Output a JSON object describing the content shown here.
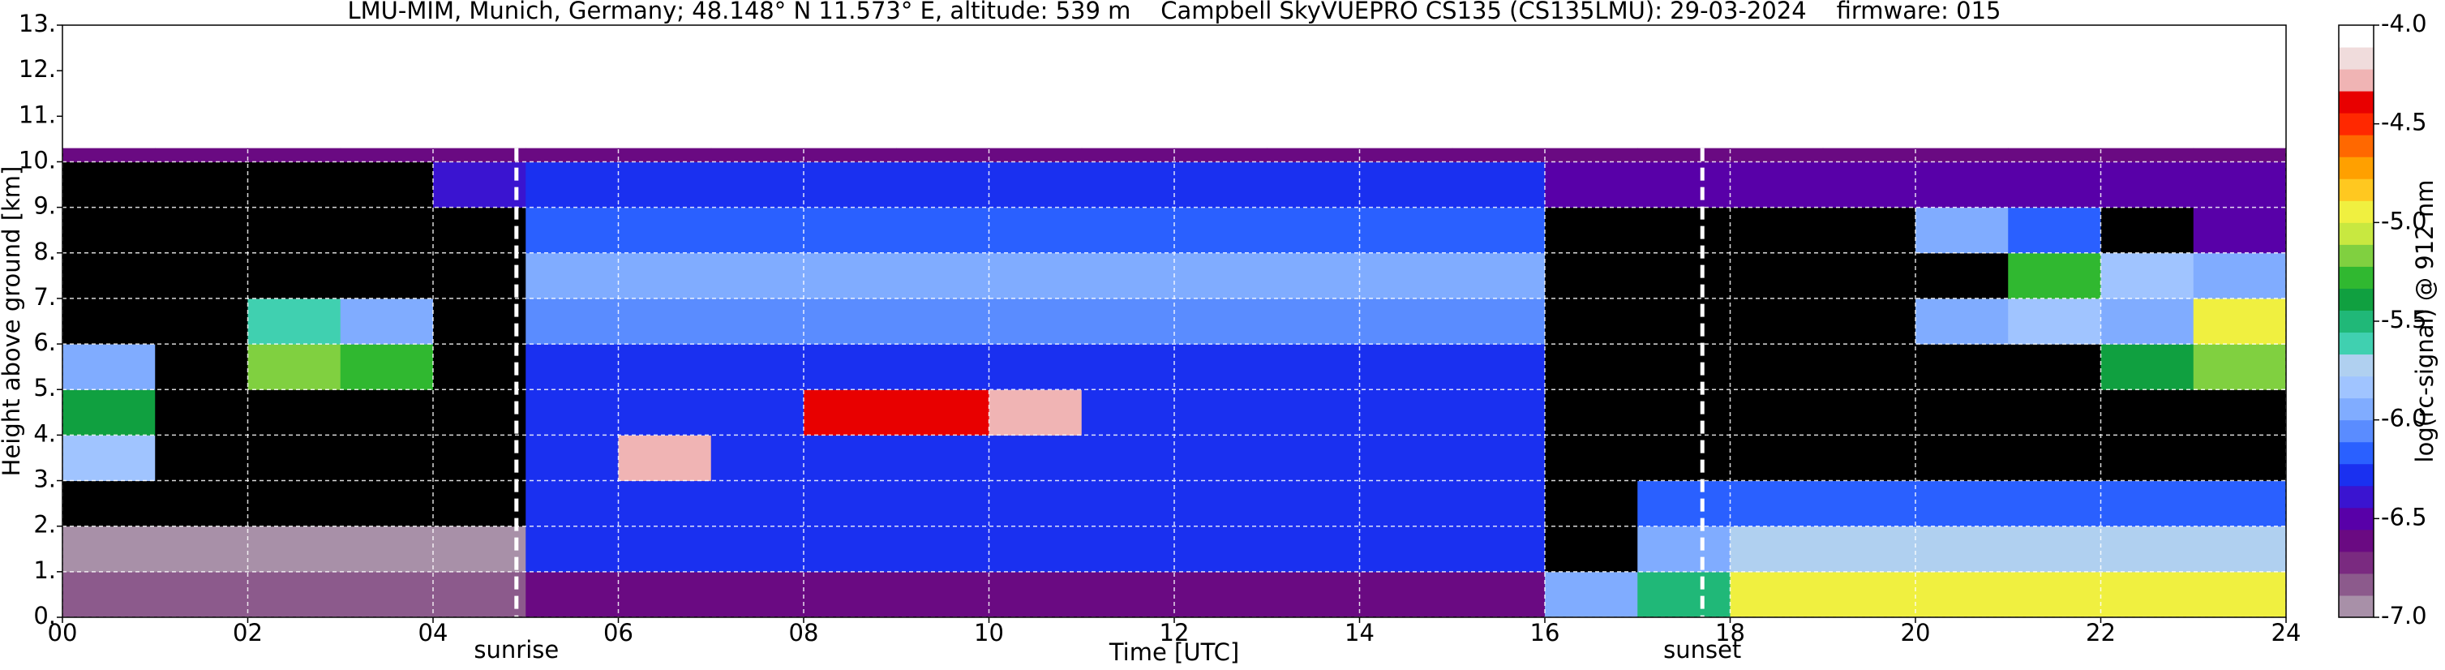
{
  "chart_data": {
    "type": "heatmap",
    "title": "LMU-MIM, Munich, Germany; 48.148° N 11.573° E, altitude: 539 m    Campbell SkyVUEPRO CS135 (CS135LMU): 29-03-2024    firmware: 015",
    "xlabel": "Time [UTC]",
    "ylabel": "Height above ground [km]",
    "colorbar_label": "log(rc-signal) @ 912 nm",
    "xlim": [
      0,
      24
    ],
    "ylim": [
      0,
      13
    ],
    "xticks": [
      {
        "value": 0,
        "label": "00"
      },
      {
        "value": 2,
        "label": "02"
      },
      {
        "value": 4,
        "label": "04"
      },
      {
        "value": 6,
        "label": "06"
      },
      {
        "value": 8,
        "label": "08"
      },
      {
        "value": 10,
        "label": "10"
      },
      {
        "value": 12,
        "label": "12"
      },
      {
        "value": 14,
        "label": "14"
      },
      {
        "value": 16,
        "label": "16"
      },
      {
        "value": 18,
        "label": "18"
      },
      {
        "value": 20,
        "label": "20"
      },
      {
        "value": 22,
        "label": "22"
      },
      {
        "value": 24,
        "label": "24"
      }
    ],
    "yticks": [
      {
        "value": 0,
        "label": "0."
      },
      {
        "value": 1,
        "label": "1."
      },
      {
        "value": 2,
        "label": "2."
      },
      {
        "value": 3,
        "label": "3."
      },
      {
        "value": 4,
        "label": "4."
      },
      {
        "value": 5,
        "label": "5."
      },
      {
        "value": 6,
        "label": "6."
      },
      {
        "value": 7,
        "label": "7."
      },
      {
        "value": 8,
        "label": "8."
      },
      {
        "value": 9,
        "label": "9."
      },
      {
        "value": 10,
        "label": "10."
      },
      {
        "value": 11,
        "label": "11."
      },
      {
        "value": 12,
        "label": "12."
      },
      {
        "value": 13,
        "label": "13."
      }
    ],
    "grid": true,
    "xbins": [
      0,
      1,
      2,
      3,
      4,
      5,
      6,
      7,
      8,
      9,
      10,
      11,
      12,
      13,
      14,
      15,
      16,
      17,
      18,
      19,
      20,
      21,
      22,
      23,
      24
    ],
    "ybins": [
      0,
      1,
      2,
      3,
      4,
      5,
      6,
      7,
      8,
      9,
      10,
      10.3
    ],
    "z": [
      [
        -6.8,
        -6.8,
        -6.8,
        -6.8,
        -6.8,
        -6.6,
        -6.6,
        -6.6,
        -6.6,
        -6.6,
        -6.6,
        -6.6,
        -6.6,
        -6.6,
        -6.6,
        -6.6,
        -6.0,
        -5.5,
        -5.0,
        -5.0,
        -5.0,
        -5.0,
        -5.0,
        -5.0
      ],
      [
        -6.9,
        -6.9,
        -6.9,
        -6.9,
        -6.9,
        -6.3,
        -6.3,
        -6.3,
        -6.3,
        -6.3,
        -6.3,
        -6.3,
        -6.3,
        -6.3,
        -6.3,
        -6.3,
        -7.5,
        -5.9,
        -5.7,
        -5.7,
        -5.7,
        -5.7,
        -5.7,
        -5.7
      ],
      [
        -7.5,
        -7.5,
        -7.5,
        -7.5,
        -7.5,
        -6.3,
        -6.3,
        -6.3,
        -6.3,
        -6.3,
        -6.3,
        -6.3,
        -6.3,
        -6.3,
        -6.3,
        -6.3,
        -7.5,
        -6.2,
        -6.2,
        -6.2,
        -6.2,
        -6.2,
        -6.2,
        -6.2
      ],
      [
        -5.8,
        -7.5,
        -7.5,
        -7.5,
        -7.5,
        -6.3,
        -4.3,
        -6.3,
        -6.3,
        -6.3,
        -6.3,
        -6.3,
        -6.3,
        -6.3,
        -6.3,
        -6.3,
        -7.5,
        -7.5,
        -7.5,
        -7.5,
        -7.5,
        -7.5,
        -7.5,
        -7.5
      ],
      [
        -5.4,
        -7.5,
        -7.5,
        -7.5,
        -7.5,
        -6.3,
        -6.3,
        -6.3,
        -4.4,
        -4.4,
        -4.3,
        -6.3,
        -6.3,
        -6.3,
        -6.3,
        -6.3,
        -7.5,
        -7.5,
        -7.5,
        -7.5,
        -7.5,
        -7.5,
        -7.5,
        -7.5
      ],
      [
        -5.9,
        -7.5,
        -5.2,
        -5.3,
        -7.5,
        -6.3,
        -6.3,
        -6.3,
        -6.3,
        -6.3,
        -6.3,
        -6.3,
        -6.3,
        -6.3,
        -6.3,
        -6.3,
        -7.5,
        -7.5,
        -7.5,
        -7.5,
        -7.5,
        -7.5,
        -5.4,
        -5.2
      ],
      [
        -7.5,
        -7.5,
        -5.6,
        -6.0,
        -7.5,
        -6.1,
        -6.1,
        -6.1,
        -6.1,
        -6.1,
        -6.1,
        -6.1,
        -6.1,
        -6.1,
        -6.1,
        -6.1,
        -7.5,
        -7.5,
        -7.5,
        -7.5,
        -6.0,
        -5.8,
        -5.9,
        -5.0
      ],
      [
        -7.5,
        -7.5,
        -7.5,
        -7.5,
        -7.5,
        -5.9,
        -5.9,
        -5.9,
        -5.9,
        -5.9,
        -5.9,
        -5.9,
        -5.9,
        -5.9,
        -5.9,
        -5.9,
        -7.5,
        -7.5,
        -7.5,
        -7.5,
        -7.5,
        -5.3,
        -5.8,
        -6.0
      ],
      [
        -7.5,
        -7.5,
        -7.5,
        -7.5,
        -7.5,
        -6.2,
        -6.2,
        -6.2,
        -6.2,
        -6.2,
        -6.2,
        -6.2,
        -6.2,
        -6.2,
        -6.2,
        -6.2,
        -7.5,
        -7.5,
        -7.5,
        -7.5,
        -6.0,
        -6.2,
        -7.5,
        -6.5
      ],
      [
        -7.5,
        -7.5,
        -7.5,
        -7.5,
        -6.4,
        -6.3,
        -6.3,
        -6.3,
        -6.3,
        -6.3,
        -6.3,
        -6.3,
        -6.3,
        -6.3,
        -6.3,
        -6.3,
        -6.5,
        -6.5,
        -6.5,
        -6.5,
        -6.5,
        -6.5,
        -6.5,
        -6.5
      ],
      [
        -6.6,
        -6.6,
        -6.6,
        -6.6,
        -6.6,
        -6.6,
        -6.6,
        -6.6,
        -6.6,
        -6.6,
        -6.6,
        -6.6,
        -6.6,
        -6.6,
        -6.6,
        -6.6,
        -6.6,
        -6.6,
        -6.6,
        -6.6,
        -6.6,
        -6.6,
        -6.6,
        -6.6
      ]
    ],
    "zlim": [
      -7,
      -4
    ],
    "zticks": [
      {
        "value": -7,
        "label": "-7.0"
      },
      -6.5,
      {
        "value": -6,
        "label": "-6.0"
      },
      -5.5,
      {
        "value": -5,
        "label": "-5.0"
      },
      -4.5,
      {
        "value": -4,
        "label": "-4.0"
      }
    ],
    "colorscale": [
      "#a890a8",
      "#8c5a8c",
      "#7a2a80",
      "#6a0a82",
      "#5800a8",
      "#3a14d0",
      "#1a30f0",
      "#2a60ff",
      "#5a8cff",
      "#80acff",
      "#a0c4ff",
      "#b0d0f0",
      "#40d0b0",
      "#20b878",
      "#10a040",
      "#30b830",
      "#80d040",
      "#c8e840",
      "#f0f040",
      "#ffc820",
      "#ffa000",
      "#ff6800",
      "#ff2800",
      "#e80000",
      "#f0b4b4",
      "#f0dcdc",
      "#ffffff"
    ],
    "under_color": "#000000",
    "annotations": [
      {
        "label": "sunrise",
        "x": 4.9
      },
      {
        "label": "sunset",
        "x": 17.7
      }
    ]
  }
}
